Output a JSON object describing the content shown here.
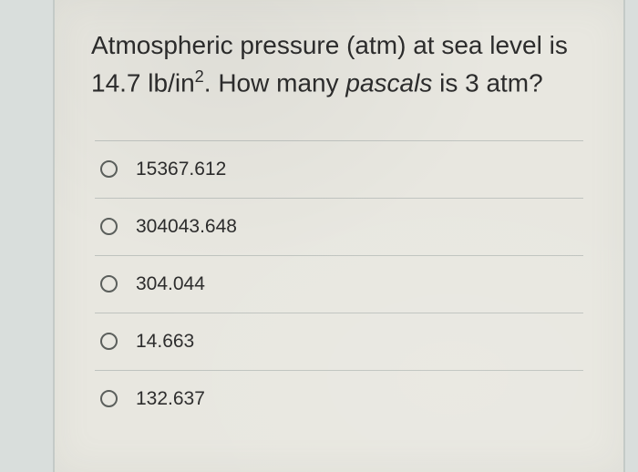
{
  "question": {
    "line1_pre": "Atmospheric pressure (atm) at sea level is",
    "line2_pre": "14.7 lb/in",
    "line2_sup": "2",
    "line2_mid": ". How many ",
    "line2_italic": "pascals",
    "line2_post": " is 3 atm?"
  },
  "options": [
    {
      "label": "15367.612"
    },
    {
      "label": "304043.648"
    },
    {
      "label": "304.044"
    },
    {
      "label": "14.663"
    },
    {
      "label": "132.637"
    }
  ],
  "colors": {
    "card_bg": "#e8e7e0",
    "page_bg": "#d9dedc",
    "divider": "#bfc3bf",
    "text": "#2c2c2c",
    "radio_border": "#5b5f5c"
  }
}
